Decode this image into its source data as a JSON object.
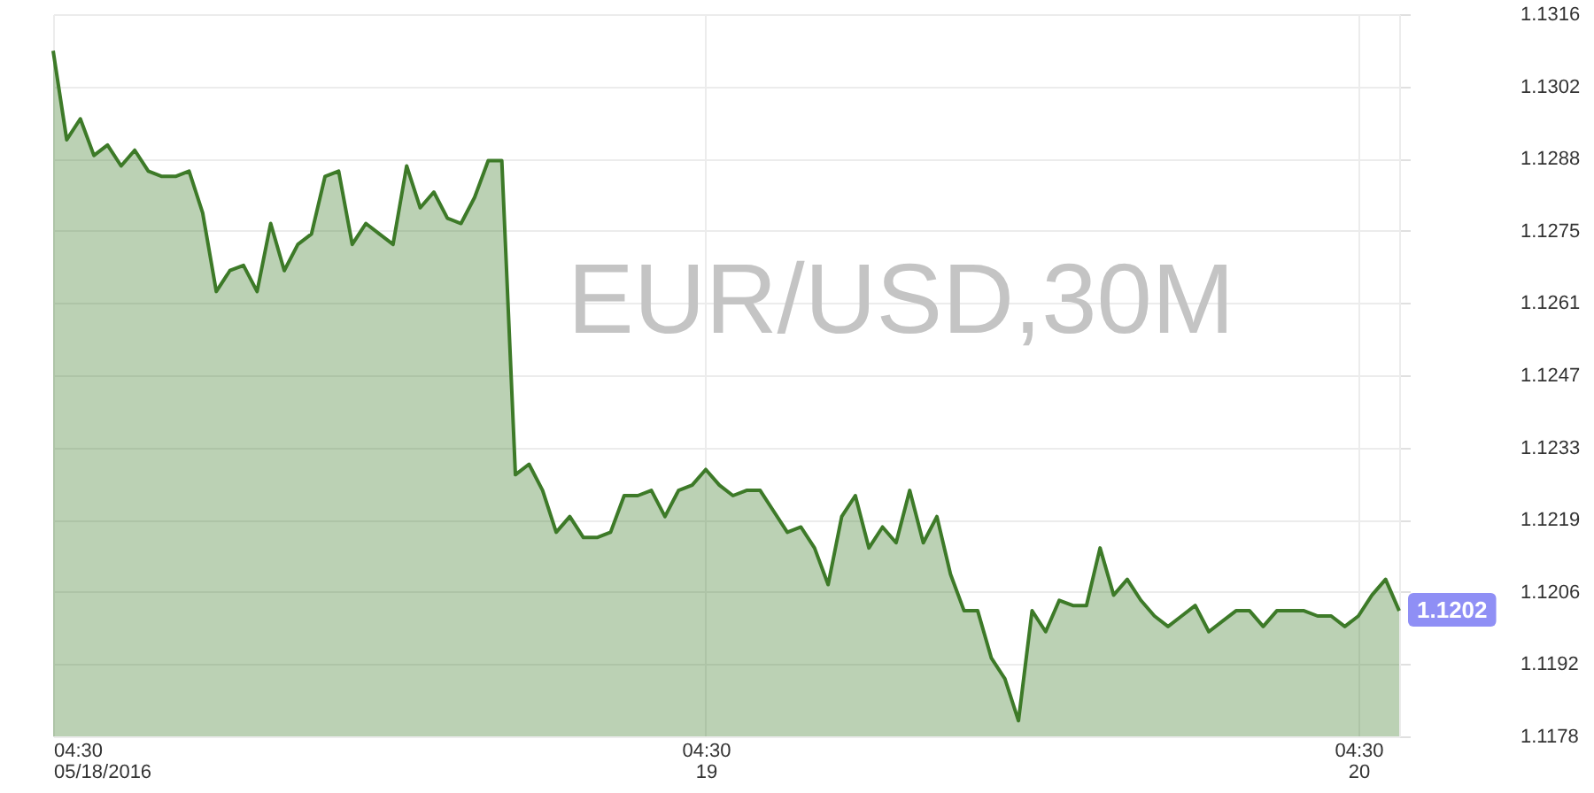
{
  "chart_data": {
    "type": "area",
    "title": "EUR/USD,30M",
    "x": [
      "2016-05-18T04:30",
      "2016-05-18T05:00",
      "2016-05-18T05:30",
      "2016-05-18T06:00",
      "2016-05-18T06:30",
      "2016-05-18T07:00",
      "2016-05-18T07:30",
      "2016-05-18T08:00",
      "2016-05-18T08:30",
      "2016-05-18T09:00",
      "2016-05-18T09:30",
      "2016-05-18T10:00",
      "2016-05-18T10:30",
      "2016-05-18T11:00",
      "2016-05-18T11:30",
      "2016-05-18T12:00",
      "2016-05-18T12:30",
      "2016-05-18T13:00",
      "2016-05-18T13:30",
      "2016-05-18T14:00",
      "2016-05-18T14:30",
      "2016-05-18T15:00",
      "2016-05-18T15:30",
      "2016-05-18T16:00",
      "2016-05-18T16:30",
      "2016-05-18T17:00",
      "2016-05-18T17:30",
      "2016-05-18T18:00",
      "2016-05-18T18:30",
      "2016-05-18T19:00",
      "2016-05-18T19:30",
      "2016-05-18T20:00",
      "2016-05-18T20:30",
      "2016-05-18T21:00",
      "2016-05-18T21:30",
      "2016-05-18T22:00",
      "2016-05-18T22:30",
      "2016-05-18T23:00",
      "2016-05-18T23:30",
      "2016-05-19T00:00",
      "2016-05-19T00:30",
      "2016-05-19T01:00",
      "2016-05-19T01:30",
      "2016-05-19T02:00",
      "2016-05-19T02:30",
      "2016-05-19T03:00",
      "2016-05-19T03:30",
      "2016-05-19T04:00",
      "2016-05-19T04:30",
      "2016-05-19T05:00",
      "2016-05-19T05:30",
      "2016-05-19T06:00",
      "2016-05-19T06:30",
      "2016-05-19T07:00",
      "2016-05-19T07:30",
      "2016-05-19T08:00",
      "2016-05-19T08:30",
      "2016-05-19T09:00",
      "2016-05-19T09:30",
      "2016-05-19T10:00",
      "2016-05-19T10:30",
      "2016-05-19T11:00",
      "2016-05-19T11:30",
      "2016-05-19T12:00",
      "2016-05-19T12:30",
      "2016-05-19T13:00",
      "2016-05-19T13:30",
      "2016-05-19T14:00",
      "2016-05-19T14:30",
      "2016-05-19T15:00",
      "2016-05-19T15:30",
      "2016-05-19T16:00",
      "2016-05-19T16:30",
      "2016-05-19T17:00",
      "2016-05-19T17:30",
      "2016-05-19T18:00",
      "2016-05-19T18:30",
      "2016-05-19T19:00",
      "2016-05-19T19:30",
      "2016-05-19T20:00",
      "2016-05-19T20:30",
      "2016-05-19T21:00",
      "2016-05-19T21:30",
      "2016-05-19T22:00",
      "2016-05-19T22:30",
      "2016-05-19T23:00",
      "2016-05-19T23:30",
      "2016-05-20T00:00",
      "2016-05-20T00:30",
      "2016-05-20T01:00",
      "2016-05-20T01:30",
      "2016-05-20T02:00",
      "2016-05-20T02:30",
      "2016-05-20T03:00",
      "2016-05-20T03:30",
      "2016-05-20T04:00",
      "2016-05-20T04:30",
      "2016-05-20T05:00",
      "2016-05-20T05:30",
      "2016-05-20T06:00"
    ],
    "series": [
      {
        "color": "#3d7a28",
        "values": [
          1.1309,
          1.1292,
          1.1296,
          1.1289,
          1.1291,
          1.1287,
          1.129,
          1.1286,
          1.1285,
          1.1285,
          1.1286,
          1.1278,
          1.1263,
          1.1267,
          1.1268,
          1.1263,
          1.1276,
          1.1267,
          1.1272,
          1.1274,
          1.1285,
          1.1286,
          1.1272,
          1.1276,
          1.1274,
          1.1272,
          1.1287,
          1.1279,
          1.1282,
          1.1277,
          1.1276,
          1.1281,
          1.1288,
          1.1288,
          1.1228,
          1.123,
          1.1225,
          1.1217,
          1.122,
          1.1216,
          1.1216,
          1.1217,
          1.1224,
          1.1224,
          1.1225,
          1.122,
          1.1225,
          1.1226,
          1.1229,
          1.1226,
          1.1224,
          1.1225,
          1.1225,
          1.1221,
          1.1217,
          1.1218,
          1.1214,
          1.1207,
          1.122,
          1.1224,
          1.1214,
          1.1218,
          1.1215,
          1.1225,
          1.1215,
          1.122,
          1.1209,
          1.1202,
          1.1202,
          1.1193,
          1.1189,
          1.1181,
          1.1202,
          1.1198,
          1.1204,
          1.1203,
          1.1203,
          1.1214,
          1.1205,
          1.1208,
          1.1204,
          1.1201,
          1.1199,
          1.1201,
          1.1203,
          1.1198,
          1.12,
          1.1202,
          1.1202,
          1.1199,
          1.1202,
          1.1202,
          1.1202,
          1.1201,
          1.1201,
          1.1199,
          1.1201,
          1.1205,
          1.1208,
          1.1202
        ]
      }
    ],
    "xlim": [
      "2016-05-18T04:30",
      "2016-05-20T06:00"
    ],
    "xticks": [
      {
        "value": "2016-05-18T04:30",
        "label": "04:30\n05/18/2016"
      },
      {
        "value": "2016-05-19T04:30",
        "label": "04:30\n19"
      },
      {
        "value": "2016-05-20T04:30",
        "label": "04:30\n20"
      }
    ],
    "ylim": [
      1.1178,
      1.1316
    ],
    "yticks": [
      1.1178,
      {
        "value": 1.11918,
        "label": "1.1192"
      },
      {
        "value": 1.12056,
        "label": "1.1206"
      },
      {
        "value": 1.12194,
        "label": "1.1219"
      },
      {
        "value": 1.12332,
        "label": "1.1233"
      },
      1.1247,
      {
        "value": 1.12608,
        "label": "1.1261"
      },
      {
        "value": 1.12746,
        "label": "1.1275"
      },
      {
        "value": 1.12884,
        "label": "1.1288"
      },
      {
        "value": 1.13022,
        "label": "1.1302"
      },
      1.1316
    ],
    "annotations": [
      {
        "text": "1.1202",
        "x": "2016-05-20T06:00",
        "y": 1.1202
      }
    ],
    "grid": true
  }
}
